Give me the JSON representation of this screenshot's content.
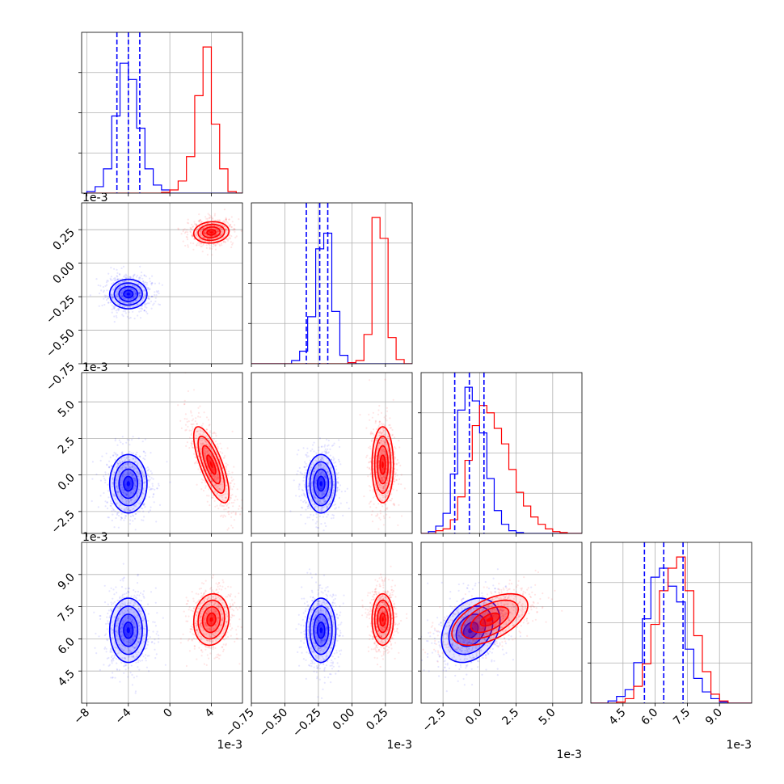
{
  "chart_data": {
    "type": "corner",
    "parameters": [
      {
        "id": "p1",
        "range": [
          -8.5,
          7.0
        ],
        "ticks": [
          -8,
          -4,
          0,
          4
        ],
        "exponent": "1e-3"
      },
      {
        "id": "p2",
        "range": [
          -0.75,
          0.45
        ],
        "ticks": [
          -0.75,
          -0.5,
          -0.25,
          0.0,
          0.25
        ],
        "exponent": "1e-3"
      },
      {
        "id": "p3",
        "range": [
          -4.0,
          7.0
        ],
        "ticks": [
          -2.5,
          0.0,
          2.5,
          5.0
        ],
        "exponent": "1e-3"
      },
      {
        "id": "p4",
        "range": [
          3.0,
          10.5
        ],
        "ticks": [
          4.5,
          6.0,
          7.5,
          9.0
        ],
        "exponent": "1e-3"
      }
    ],
    "series": [
      {
        "color": "#0000ff",
        "means": [
          -4.0,
          -0.23,
          -0.6,
          6.4
        ],
        "sds": [
          0.9,
          0.055,
          1.0,
          0.75
        ],
        "corr": [
          [
            1,
            0,
            0,
            0
          ],
          [
            0,
            1,
            0,
            0
          ],
          [
            0,
            0,
            1,
            0.3
          ],
          [
            0,
            0,
            0.3,
            1
          ]
        ],
        "quantiles": [
          [
            -5.1,
            -4.0,
            -2.9
          ],
          [
            -0.34,
            -0.24,
            -0.18
          ],
          [
            -1.7,
            -0.7,
            0.3
          ],
          [
            5.5,
            6.4,
            7.3
          ]
        ]
      },
      {
        "color": "#ff0000",
        "means": [
          4.0,
          0.23,
          0.7,
          6.9
        ],
        "sds": [
          0.85,
          0.04,
          1.3,
          0.6
        ],
        "corr": [
          [
            1,
            0.1,
            -0.75,
            0.1
          ],
          [
            0.1,
            1,
            0,
            0
          ],
          [
            -0.75,
            0,
            1,
            0.55
          ],
          [
            0.1,
            0,
            0.55,
            1
          ]
        ],
        "quantiles": []
      }
    ],
    "histograms": [
      {
        "param": "p1",
        "bin_edges": [
          -8.0,
          -7.2,
          -6.4,
          -5.6,
          -4.8,
          -4.0,
          -3.2,
          -2.4,
          -1.6,
          -0.8,
          0.0,
          0.8,
          1.6,
          2.4,
          3.2,
          4.0,
          4.8,
          5.6,
          6.4,
          7.0
        ],
        "counts": {
          "blue": [
            2,
            8,
            30,
            95,
            160,
            140,
            80,
            30,
            10,
            4,
            0,
            0,
            0,
            0,
            0,
            0,
            0,
            0,
            0
          ],
          "red": [
            0,
            0,
            0,
            0,
            0,
            0,
            0,
            0,
            0,
            1,
            4,
            15,
            45,
            120,
            180,
            85,
            30,
            2,
            0
          ]
        }
      },
      {
        "param": "p2",
        "bin_edges": [
          -0.75,
          -0.69,
          -0.63,
          -0.57,
          -0.51,
          -0.45,
          -0.39,
          -0.33,
          -0.27,
          -0.21,
          -0.15,
          -0.09,
          -0.03,
          0.03,
          0.09,
          0.15,
          0.21,
          0.27,
          0.33,
          0.39,
          0.45
        ],
        "counts": {
          "blue": [
            0,
            0,
            0,
            0,
            0,
            3,
            12,
            45,
            110,
            125,
            50,
            8,
            1,
            0,
            0,
            0,
            0,
            0,
            0,
            0
          ],
          "red": [
            0,
            0,
            0,
            0,
            0,
            0,
            0,
            0,
            0,
            0,
            0,
            0,
            1,
            3,
            28,
            140,
            120,
            25,
            4,
            0
          ]
        }
      },
      {
        "param": "p3",
        "bin_edges": [
          -4.0,
          -3.5,
          -3.0,
          -2.5,
          -2.0,
          -1.5,
          -1.0,
          -0.5,
          0.0,
          0.5,
          1.0,
          1.5,
          2.0,
          2.5,
          3.0,
          3.5,
          4.0,
          4.5,
          5.0,
          5.5,
          6.0,
          7.0
        ],
        "counts": {
          "blue": [
            0,
            2,
            8,
            22,
            65,
            135,
            160,
            145,
            110,
            60,
            25,
            10,
            3,
            1,
            0,
            0,
            0,
            0,
            0,
            0,
            0
          ],
          "red": [
            0,
            0,
            3,
            5,
            15,
            40,
            80,
            118,
            140,
            132,
            115,
            98,
            70,
            45,
            30,
            18,
            10,
            5,
            2,
            1,
            0
          ]
        }
      },
      {
        "param": "p4",
        "bin_edges": [
          3.0,
          3.4,
          3.8,
          4.2,
          4.6,
          5.0,
          5.4,
          5.8,
          6.2,
          6.6,
          7.0,
          7.4,
          7.8,
          8.2,
          8.6,
          9.0,
          9.4,
          9.8,
          10.5
        ],
        "counts": {
          "blue": [
            0,
            0,
            2,
            6,
            12,
            36,
            75,
            112,
            120,
            104,
            90,
            48,
            22,
            10,
            4,
            1,
            0,
            0
          ],
          "red": [
            0,
            0,
            0,
            1,
            4,
            15,
            35,
            70,
            100,
            120,
            130,
            100,
            60,
            28,
            8,
            2,
            0,
            0
          ]
        }
      }
    ],
    "title": "",
    "grid": true,
    "legend": "none"
  }
}
